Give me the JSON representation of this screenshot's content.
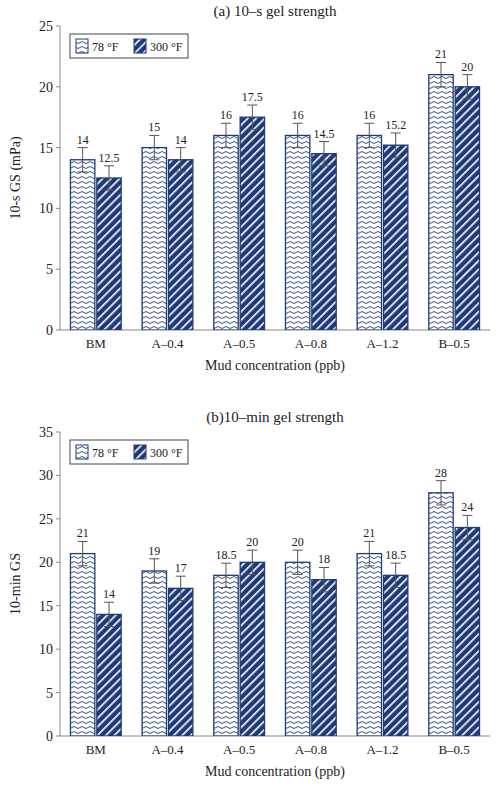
{
  "chart_data": [
    {
      "type": "bar",
      "title": "(a) 10–s gel strength",
      "x_label": "Mud concentration (ppb)",
      "y_label": "10-s GS (mPa)",
      "categories": [
        "BM",
        "A–0.4",
        "A–0.5",
        "A–0.8",
        "A–1.2",
        "B–0.5"
      ],
      "series": [
        {
          "name": "78 °F",
          "color": "#1f3a78",
          "values": [
            14,
            15,
            16,
            16,
            16,
            21
          ],
          "errors": [
            1,
            1,
            1,
            1,
            1,
            1
          ]
        },
        {
          "name": "300 °F",
          "color": "#1f3a78",
          "values": [
            12.5,
            14,
            17.5,
            14.5,
            15.2,
            20
          ],
          "errors": [
            1,
            1,
            1,
            1,
            1,
            1
          ]
        }
      ],
      "ylim": [
        0,
        25
      ],
      "yticks": [
        0,
        5,
        10,
        15,
        20,
        25
      ],
      "grid": false,
      "legend": "upper left",
      "data_labels": true
    },
    {
      "type": "bar",
      "title": "(b)10–min gel strength",
      "x_label": "Mud concentration (ppb)",
      "y_label": "10-min GS",
      "categories": [
        "BM",
        "A–0.4",
        "A–0.5",
        "A–0.8",
        "A–1.2",
        "B–0.5"
      ],
      "series": [
        {
          "name": "78 °F",
          "color": "#1f3a78",
          "values": [
            21,
            19,
            18.5,
            20,
            21,
            28
          ],
          "errors": [
            1.4,
            1.4,
            1.4,
            1.4,
            1.4,
            1.4
          ]
        },
        {
          "name": "300 °F",
          "color": "#1f3a78",
          "values": [
            14,
            17,
            20,
            18,
            18.5,
            24
          ],
          "errors": [
            1.4,
            1.4,
            1.4,
            1.4,
            1.4,
            1.4
          ]
        }
      ],
      "ylim": [
        0,
        35
      ],
      "yticks": [
        0,
        5,
        10,
        15,
        20,
        25,
        30,
        35
      ],
      "grid": false,
      "legend": "upper left",
      "data_labels": true
    }
  ]
}
